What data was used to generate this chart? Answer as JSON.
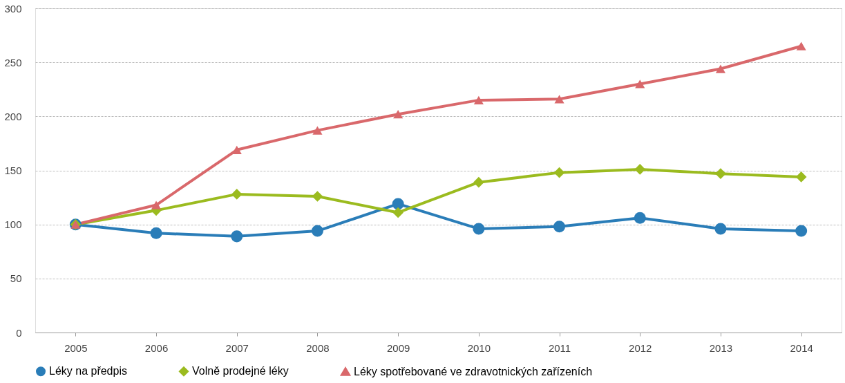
{
  "chart_data": {
    "type": "line",
    "categories": [
      "2005",
      "2006",
      "2007",
      "2008",
      "2009",
      "2010",
      "2011",
      "2012",
      "2013",
      "2014"
    ],
    "series": [
      {
        "name": "Léky na předpis",
        "color": "#2a7db8",
        "marker": "circle",
        "values": [
          100,
          92,
          89,
          94,
          119,
          96,
          98,
          106,
          96,
          94
        ]
      },
      {
        "name": "Volně prodejné léky",
        "color": "#9bbb1f",
        "marker": "diamond",
        "values": [
          100,
          113,
          128,
          126,
          111,
          139,
          148,
          151,
          147,
          144
        ]
      },
      {
        "name": "Léky spotřebované ve zdravotnických zařízeních",
        "color": "#d9686b",
        "marker": "triangle",
        "values": [
          100,
          118,
          169,
          187,
          202,
          215,
          216,
          230,
          244,
          265
        ]
      }
    ],
    "ylim": [
      0,
      300
    ],
    "yticks": [
      0,
      50,
      100,
      150,
      200,
      250,
      300
    ],
    "grid": "y",
    "legend": "bottom",
    "line_style": "solid"
  }
}
